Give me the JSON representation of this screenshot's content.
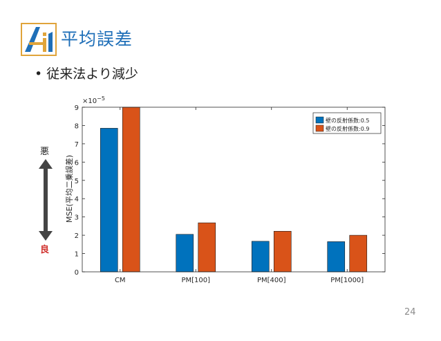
{
  "slide": {
    "title": "平均誤差",
    "bullet_symbol": "•",
    "bullet": "従来法より減少",
    "annotation_bad": "悪",
    "annotation_good": "良",
    "page_number": "24",
    "accent_color": "#1f6fb8"
  },
  "chart_data": {
    "type": "bar",
    "categories": [
      "CM",
      "PM[100]",
      "PM[400]",
      "PM[1000]"
    ],
    "series": [
      {
        "name": "壁の反射係数:0.5",
        "color": "#0072bd",
        "values": [
          7.85,
          2.05,
          1.67,
          1.65
        ]
      },
      {
        "name": "壁の反射係数:0.9",
        "color": "#d95319",
        "values": [
          9.0,
          2.68,
          2.22,
          2.0
        ]
      }
    ],
    "ylabel": "MSE(平均二乗誤差)",
    "exponent_base": "×10",
    "exponent_power": "−5",
    "ylim": [
      0,
      9
    ],
    "yticks": [
      0,
      1,
      2,
      3,
      4,
      5,
      6,
      7,
      8,
      9
    ],
    "grid": false,
    "legend_position": "top-right"
  }
}
